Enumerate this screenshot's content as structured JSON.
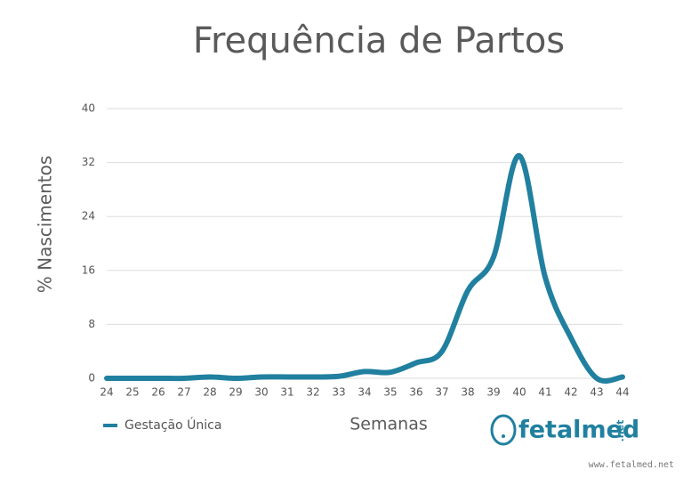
{
  "chart_data": {
    "type": "line",
    "title": "Frequência de Partos",
    "x_label": "Semanas",
    "y_label": "% Nascimentos",
    "x": [
      24,
      25,
      26,
      27,
      28,
      29,
      30,
      31,
      32,
      33,
      34,
      35,
      36,
      37,
      38,
      39,
      40,
      41,
      42,
      43,
      44
    ],
    "series": [
      {
        "name": "Gestação Única",
        "color": "#21809f",
        "values": [
          0,
          0,
          0,
          0,
          0.2,
          0,
          0.2,
          0.2,
          0.2,
          0.3,
          1,
          0.9,
          2.3,
          4,
          13,
          18,
          33,
          15,
          6,
          0,
          0.2
        ]
      }
    ],
    "xlim": [
      24,
      44
    ],
    "xticks": [
      24,
      25,
      26,
      27,
      28,
      29,
      30,
      31,
      32,
      33,
      34,
      35,
      36,
      37,
      38,
      39,
      40,
      41,
      42,
      43,
      44
    ],
    "ylim": [
      0,
      40
    ],
    "yticks": [
      0,
      8,
      16,
      24,
      32,
      40
    ],
    "grid": true,
    "smooth": true,
    "legend": "bottom-left",
    "logo": {
      "name": "fetalmed",
      "suffix": ".net"
    },
    "watermark": "www.fetalmed.net"
  }
}
